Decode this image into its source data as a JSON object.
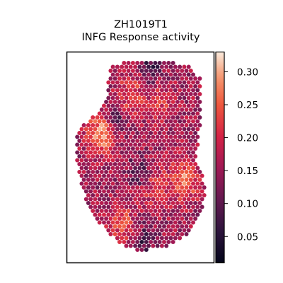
{
  "chart_data": {
    "type": "heatmap",
    "title": "ZH1019T1",
    "subtitle": "INFG Response activity",
    "xlabel": "",
    "ylabel": "",
    "colorbar": {
      "colormap": "rocket",
      "range": [
        0.01,
        0.33
      ],
      "ticks": [
        0.05,
        0.1,
        0.15,
        0.2,
        0.25,
        0.3
      ],
      "tick_labels": [
        "0.05",
        "0.10",
        "0.15",
        "0.20",
        "0.25",
        "0.30"
      ]
    },
    "grid": false,
    "hotspots": [
      {
        "u": 0.2,
        "v": 0.38,
        "value": 0.3
      },
      {
        "u": 0.83,
        "v": 0.63,
        "value": 0.28
      },
      {
        "u": 0.42,
        "v": 0.18,
        "value": 0.24
      },
      {
        "u": 0.65,
        "v": 0.23,
        "value": 0.21
      },
      {
        "u": 0.36,
        "v": 0.85,
        "value": 0.23
      },
      {
        "u": 0.62,
        "v": 0.67,
        "value": 0.22
      }
    ],
    "coldspots": [
      {
        "u": 0.3,
        "v": 0.3,
        "value": 0.06
      },
      {
        "u": 0.48,
        "v": 0.58,
        "value": 0.09
      },
      {
        "u": 0.58,
        "v": 0.03,
        "value": 0.07
      },
      {
        "u": 0.52,
        "v": 0.95,
        "value": 0.08
      }
    ]
  }
}
